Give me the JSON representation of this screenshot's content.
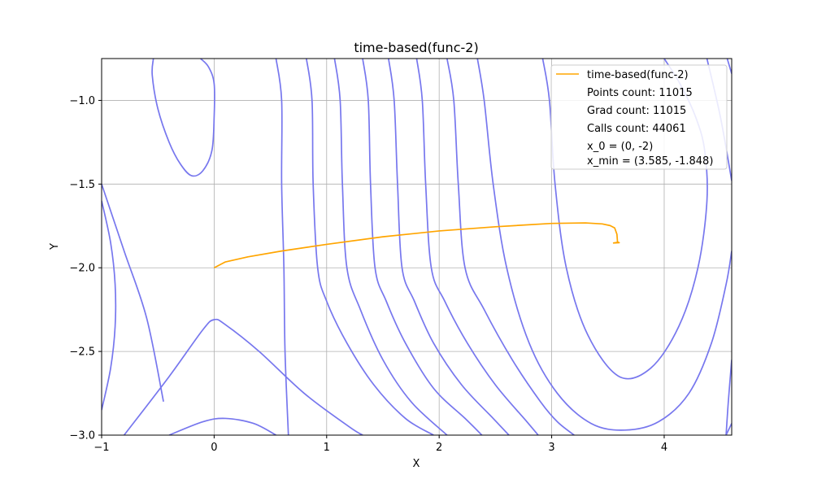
{
  "chart_data": {
    "type": "line",
    "title": "time-based(func-2)",
    "xlabel": "X",
    "ylabel": "Y",
    "xlim": [
      -1,
      4.6
    ],
    "ylim": [
      -3.0,
      -0.75
    ],
    "xticks": [
      "−1",
      "0",
      "1",
      "2",
      "3",
      "4"
    ],
    "xtick_values": [
      -1,
      0,
      1,
      2,
      3,
      4
    ],
    "yticks": [
      "−1.0",
      "−1.5",
      "−2.0",
      "−2.5",
      "−3.0"
    ],
    "ytick_values": [
      -1.0,
      -1.5,
      -2.0,
      -2.5,
      -3.0
    ],
    "grid": true,
    "legend_position": "top-right",
    "colors": {
      "path": "#ffa500",
      "contour": "#7777ee",
      "grid": "#b0b0b0"
    },
    "legend": {
      "series_name": "time-based(func-2)",
      "lines": [
        "Points count: 11015",
        "Grad count: 11015",
        "Calls count: 44061",
        "x_0 = (0, -2)",
        "x_min = (3.585, -1.848)"
      ]
    },
    "path": {
      "x": [
        0,
        0.1,
        0.3,
        0.6,
        1.0,
        1.5,
        2.0,
        2.5,
        3.0,
        3.3,
        3.45,
        3.52,
        3.56,
        3.58,
        3.585,
        3.6,
        3.55,
        3.585
      ],
      "y": [
        -2.0,
        -1.965,
        -1.935,
        -1.9,
        -1.86,
        -1.815,
        -1.78,
        -1.755,
        -1.735,
        -1.732,
        -1.738,
        -1.748,
        -1.762,
        -1.8,
        -1.845,
        -1.85,
        -1.852,
        -1.848
      ]
    },
    "contours": [
      {
        "x": [
          -0.54,
          -0.55,
          -0.5,
          -0.4,
          -0.3,
          -0.2,
          -0.1,
          -0.02,
          0.0,
          0.0,
          -0.05,
          -0.12
        ],
        "y": [
          -0.75,
          -0.85,
          -1.05,
          -1.25,
          -1.38,
          -1.45,
          -1.42,
          -1.3,
          -1.1,
          -0.9,
          -0.8,
          -0.75
        ]
      },
      {
        "x": [
          -1.0,
          -0.8,
          -0.6,
          -0.45
        ],
        "y": [
          -1.5,
          -1.9,
          -2.3,
          -2.8
        ]
      },
      {
        "x": [
          -0.8,
          -0.4,
          -0.1,
          0.0,
          0.1,
          0.4,
          0.8,
          1.2,
          1.32
        ],
        "y": [
          -3.0,
          -2.65,
          -2.37,
          -2.31,
          -2.34,
          -2.5,
          -2.75,
          -2.95,
          -3.0
        ]
      },
      {
        "x": [
          -1.0,
          -0.92,
          -0.88,
          -0.88,
          -0.92,
          -1.0
        ],
        "y": [
          -2.85,
          -2.6,
          -2.35,
          -2.1,
          -1.85,
          -1.6
        ]
      },
      {
        "x": [
          -0.4,
          -0.1,
          0.1,
          0.35,
          0.55
        ],
        "y": [
          -3.0,
          -2.92,
          -2.9,
          -2.93,
          -3.0
        ]
      },
      {
        "x": [
          0.55,
          0.6,
          0.6,
          0.62,
          0.63,
          0.66
        ],
        "y": [
          -0.75,
          -1.0,
          -1.5,
          -2.0,
          -2.5,
          -3.0
        ]
      },
      {
        "x": [
          0.82,
          0.87,
          0.88,
          0.92,
          1.0,
          1.18,
          1.42,
          1.7,
          1.95
        ],
        "y": [
          -0.75,
          -1.0,
          -1.5,
          -2.0,
          -2.2,
          -2.45,
          -2.7,
          -2.9,
          -3.0
        ]
      },
      {
        "x": [
          1.07,
          1.12,
          1.14,
          1.18,
          1.3,
          1.5,
          1.75,
          2.07
        ],
        "y": [
          -0.75,
          -1.0,
          -1.5,
          -2.0,
          -2.25,
          -2.55,
          -2.8,
          -3.0
        ]
      },
      {
        "x": [
          1.32,
          1.37,
          1.39,
          1.43,
          1.53,
          1.7,
          1.95,
          2.23,
          2.38
        ],
        "y": [
          -0.75,
          -1.0,
          -1.5,
          -2.0,
          -2.2,
          -2.45,
          -2.72,
          -2.9,
          -3.0
        ]
      },
      {
        "x": [
          1.55,
          1.6,
          1.63,
          1.67,
          1.78,
          1.95,
          2.2,
          2.48,
          2.62
        ],
        "y": [
          -0.75,
          -1.0,
          -1.5,
          -2.0,
          -2.2,
          -2.45,
          -2.7,
          -2.9,
          -3.0
        ]
      },
      {
        "x": [
          1.8,
          1.85,
          1.88,
          1.93,
          2.05,
          2.25,
          2.5,
          2.78,
          2.88
        ],
        "y": [
          -0.75,
          -1.0,
          -1.5,
          -2.0,
          -2.2,
          -2.45,
          -2.7,
          -2.92,
          -3.0
        ]
      },
      {
        "x": [
          2.07,
          2.13,
          2.17,
          2.23,
          2.4,
          2.65,
          2.9,
          3.05,
          3.2
        ],
        "y": [
          -0.75,
          -1.0,
          -1.5,
          -2.0,
          -2.25,
          -2.55,
          -2.8,
          -2.92,
          -3.0
        ]
      },
      {
        "x": [
          2.34,
          2.4,
          2.48,
          2.6,
          2.8,
          3.05,
          3.35,
          3.65,
          3.95,
          4.22,
          4.42,
          4.55,
          4.6
        ],
        "y": [
          -0.75,
          -1.0,
          -1.5,
          -2.0,
          -2.45,
          -2.75,
          -2.93,
          -2.97,
          -2.92,
          -2.75,
          -2.45,
          -2.1,
          -1.9
        ]
      },
      {
        "x": [
          2.92,
          2.98,
          3.03,
          3.13,
          3.32,
          3.6,
          3.88,
          4.13,
          4.3,
          4.38,
          4.36,
          4.28,
          4.14,
          4.0
        ],
        "y": [
          -0.75,
          -1.0,
          -1.5,
          -2.0,
          -2.4,
          -2.65,
          -2.6,
          -2.35,
          -2.0,
          -1.6,
          -1.3,
          -1.1,
          -0.9,
          -0.75
        ]
      },
      {
        "x": [
          4.38,
          4.5,
          4.6
        ],
        "y": [
          -0.75,
          -1.1,
          -1.48
        ]
      },
      {
        "x": [
          4.56,
          4.6
        ],
        "y": [
          -0.75,
          -0.84
        ]
      },
      {
        "x": [
          4.55,
          4.6
        ],
        "y": [
          -3.0,
          -2.93
        ]
      },
      {
        "x": [
          4.6,
          4.57,
          4.55
        ],
        "y": [
          -2.55,
          -2.8,
          -3.0
        ]
      }
    ]
  }
}
